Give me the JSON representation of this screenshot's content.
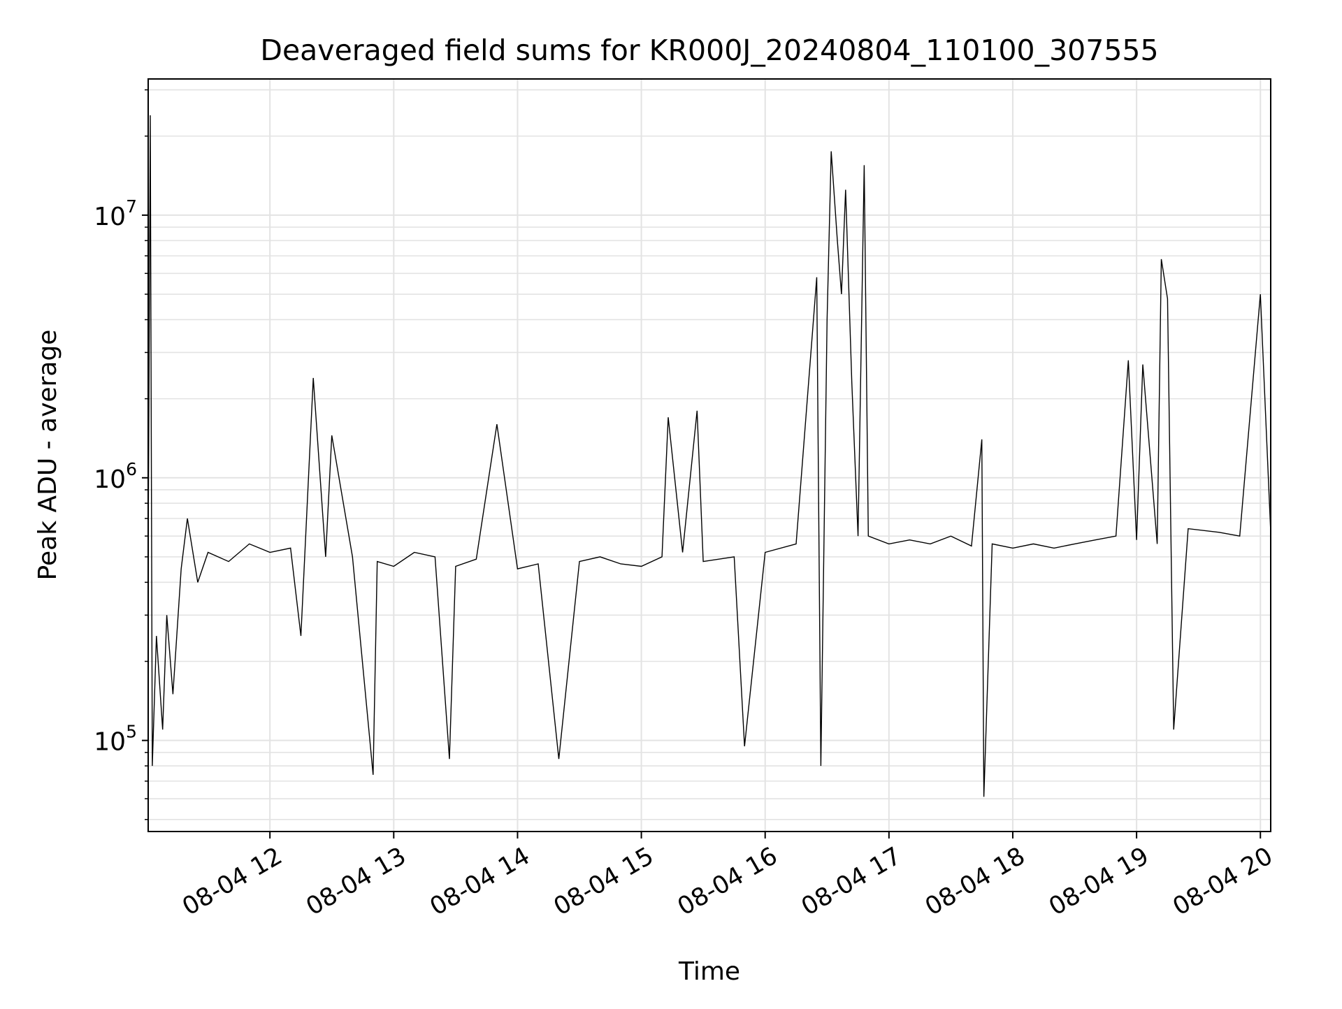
{
  "chart_data": {
    "type": "line",
    "title": "Deaveraged field sums for KR000J_20240804_110100_307555",
    "xlabel": "Time",
    "ylabel": "Peak ADU - average",
    "y_scale": "log",
    "ylim": [
      45000,
      33000000
    ],
    "xlim": [
      "2024-08-04 11:01",
      "2024-08-04 20:05"
    ],
    "grid": true,
    "line_color": "#000000",
    "x_ticks": [
      {
        "x": "2024-08-04 12:00",
        "label": "08-04 12"
      },
      {
        "x": "2024-08-04 13:00",
        "label": "08-04 13"
      },
      {
        "x": "2024-08-04 14:00",
        "label": "08-04 14"
      },
      {
        "x": "2024-08-04 15:00",
        "label": "08-04 15"
      },
      {
        "x": "2024-08-04 16:00",
        "label": "08-04 16"
      },
      {
        "x": "2024-08-04 17:00",
        "label": "08-04 17"
      },
      {
        "x": "2024-08-04 18:00",
        "label": "08-04 18"
      },
      {
        "x": "2024-08-04 19:00",
        "label": "08-04 19"
      },
      {
        "x": "2024-08-04 20:00",
        "label": "08-04 20"
      }
    ],
    "y_ticks": [
      {
        "value": 100000,
        "base": "10",
        "exp": "5"
      },
      {
        "value": 1000000,
        "base": "10",
        "exp": "6"
      },
      {
        "value": 10000000,
        "base": "10",
        "exp": "7"
      }
    ],
    "series": [
      {
        "points": [
          [
            "2024-08-04 11:01",
            520000
          ],
          [
            "2024-08-04 11:02",
            24000000
          ],
          [
            "2024-08-04 11:03",
            80000
          ],
          [
            "2024-08-04 11:05",
            250000
          ],
          [
            "2024-08-04 11:08",
            110000
          ],
          [
            "2024-08-04 11:10",
            300000
          ],
          [
            "2024-08-04 11:13",
            150000
          ],
          [
            "2024-08-04 11:17",
            450000
          ],
          [
            "2024-08-04 11:20",
            700000
          ],
          [
            "2024-08-04 11:25",
            400000
          ],
          [
            "2024-08-04 11:30",
            520000
          ],
          [
            "2024-08-04 11:40",
            480000
          ],
          [
            "2024-08-04 11:50",
            560000
          ],
          [
            "2024-08-04 12:00",
            520000
          ],
          [
            "2024-08-04 12:10",
            540000
          ],
          [
            "2024-08-04 12:15",
            250000
          ],
          [
            "2024-08-04 12:21",
            2400000
          ],
          [
            "2024-08-04 12:27",
            500000
          ],
          [
            "2024-08-04 12:30",
            1450000
          ],
          [
            "2024-08-04 12:40",
            500000
          ],
          [
            "2024-08-04 12:50",
            74000
          ],
          [
            "2024-08-04 12:52",
            480000
          ],
          [
            "2024-08-04 13:00",
            460000
          ],
          [
            "2024-08-04 13:10",
            520000
          ],
          [
            "2024-08-04 13:20",
            500000
          ],
          [
            "2024-08-04 13:27",
            85000
          ],
          [
            "2024-08-04 13:30",
            460000
          ],
          [
            "2024-08-04 13:40",
            490000
          ],
          [
            "2024-08-04 13:50",
            1600000
          ],
          [
            "2024-08-04 14:00",
            450000
          ],
          [
            "2024-08-04 14:10",
            470000
          ],
          [
            "2024-08-04 14:20",
            85000
          ],
          [
            "2024-08-04 14:30",
            480000
          ],
          [
            "2024-08-04 14:40",
            500000
          ],
          [
            "2024-08-04 14:50",
            470000
          ],
          [
            "2024-08-04 15:00",
            460000
          ],
          [
            "2024-08-04 15:10",
            500000
          ],
          [
            "2024-08-04 15:13",
            1700000
          ],
          [
            "2024-08-04 15:20",
            520000
          ],
          [
            "2024-08-04 15:27",
            1800000
          ],
          [
            "2024-08-04 15:30",
            480000
          ],
          [
            "2024-08-04 15:45",
            500000
          ],
          [
            "2024-08-04 15:50",
            95000
          ],
          [
            "2024-08-04 16:00",
            520000
          ],
          [
            "2024-08-04 16:15",
            560000
          ],
          [
            "2024-08-04 16:25",
            5800000
          ],
          [
            "2024-08-04 16:27",
            80000
          ],
          [
            "2024-08-04 16:30",
            4000000
          ],
          [
            "2024-08-04 16:32",
            17500000
          ],
          [
            "2024-08-04 16:35",
            8000000
          ],
          [
            "2024-08-04 16:37",
            5000000
          ],
          [
            "2024-08-04 16:39",
            12500000
          ],
          [
            "2024-08-04 16:42",
            2300000
          ],
          [
            "2024-08-04 16:45",
            600000
          ],
          [
            "2024-08-04 16:48",
            15500000
          ],
          [
            "2024-08-04 16:50",
            600000
          ],
          [
            "2024-08-04 17:00",
            560000
          ],
          [
            "2024-08-04 17:10",
            580000
          ],
          [
            "2024-08-04 17:20",
            560000
          ],
          [
            "2024-08-04 17:30",
            600000
          ],
          [
            "2024-08-04 17:40",
            550000
          ],
          [
            "2024-08-04 17:45",
            1400000
          ],
          [
            "2024-08-04 17:46",
            61000
          ],
          [
            "2024-08-04 17:50",
            560000
          ],
          [
            "2024-08-04 18:00",
            540000
          ],
          [
            "2024-08-04 18:10",
            560000
          ],
          [
            "2024-08-04 18:20",
            540000
          ],
          [
            "2024-08-04 18:30",
            560000
          ],
          [
            "2024-08-04 18:40",
            580000
          ],
          [
            "2024-08-04 18:50",
            600000
          ],
          [
            "2024-08-04 18:56",
            2800000
          ],
          [
            "2024-08-04 19:00",
            580000
          ],
          [
            "2024-08-04 19:03",
            2700000
          ],
          [
            "2024-08-04 19:10",
            560000
          ],
          [
            "2024-08-04 19:12",
            6800000
          ],
          [
            "2024-08-04 19:15",
            4800000
          ],
          [
            "2024-08-04 19:18",
            110000
          ],
          [
            "2024-08-04 19:25",
            640000
          ],
          [
            "2024-08-04 19:40",
            620000
          ],
          [
            "2024-08-04 19:50",
            600000
          ],
          [
            "2024-08-04 20:00",
            5000000
          ],
          [
            "2024-08-04 20:05",
            620000
          ]
        ]
      }
    ]
  }
}
